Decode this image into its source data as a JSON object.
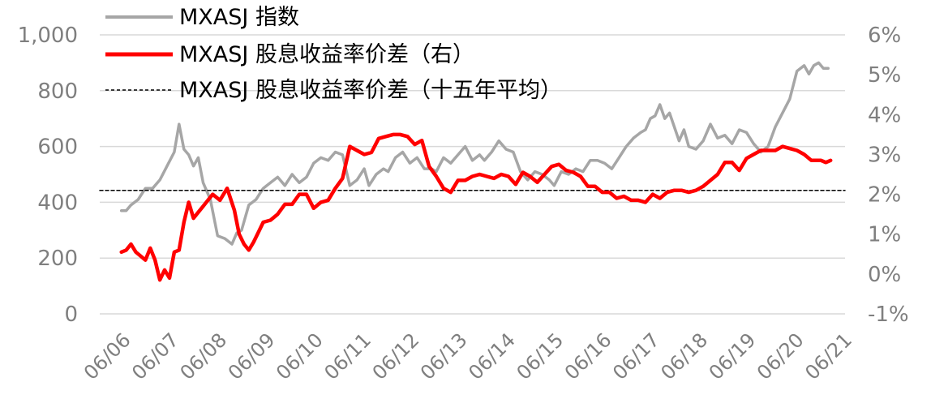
{
  "chart_data": {
    "type": "line",
    "title": "",
    "x_categories": [
      "06/06",
      "06/07",
      "06/08",
      "06/09",
      "06/10",
      "06/11",
      "06/12",
      "06/13",
      "06/14",
      "06/15",
      "06/16",
      "06/17",
      "06/18",
      "06/19",
      "06/20",
      "06/21"
    ],
    "left_axis": {
      "ylim": [
        0,
        1000
      ],
      "ticks": [
        0,
        200,
        400,
        600,
        800,
        1000
      ],
      "tick_labels": [
        "0",
        "200",
        "400",
        "600",
        "800",
        "1,000"
      ]
    },
    "right_axis": {
      "ylim": [
        -1,
        6
      ],
      "ticks": [
        -1,
        0,
        1,
        2,
        3,
        4,
        5,
        6
      ],
      "tick_labels": [
        "-1%",
        "0%",
        "1%",
        "2%",
        "3%",
        "4%",
        "5%",
        "6%"
      ]
    },
    "grid": "horizontal",
    "legend_position": "top-left",
    "series": [
      {
        "name": "MXASJ 指数",
        "axis": "left",
        "color": "#a6a6a6",
        "style": "solid",
        "x": [
          2006.45,
          2006.55,
          2006.65,
          2006.8,
          2006.95,
          2007.1,
          2007.25,
          2007.4,
          2007.55,
          2007.65,
          2007.75,
          2007.85,
          2007.95,
          2008.05,
          2008.15,
          2008.3,
          2008.45,
          2008.6,
          2008.75,
          2008.85,
          2008.95,
          2009.1,
          2009.25,
          2009.4,
          2009.55,
          2009.7,
          2009.85,
          2010.0,
          2010.15,
          2010.3,
          2010.45,
          2010.6,
          2010.75,
          2010.9,
          2011.05,
          2011.2,
          2011.35,
          2011.5,
          2011.6,
          2011.75,
          2011.9,
          2012.0,
          2012.15,
          2012.3,
          2012.45,
          2012.6,
          2012.75,
          2012.9,
          2013.0,
          2013.15,
          2013.3,
          2013.45,
          2013.6,
          2013.75,
          2013.9,
          2014.0,
          2014.15,
          2014.3,
          2014.45,
          2014.6,
          2014.75,
          2014.9,
          2015.05,
          2015.2,
          2015.35,
          2015.45,
          2015.6,
          2015.75,
          2015.9,
          2016.05,
          2016.2,
          2016.35,
          2016.5,
          2016.65,
          2016.8,
          2016.95,
          2017.1,
          2017.25,
          2017.35,
          2017.45,
          2017.55,
          2017.65,
          2017.75,
          2017.85,
          2017.95,
          2018.05,
          2018.15,
          2018.25,
          2018.4,
          2018.55,
          2018.7,
          2018.85,
          2019.0,
          2019.15,
          2019.3,
          2019.45,
          2019.6,
          2019.75,
          2019.9,
          2020.05,
          2020.2,
          2020.35,
          2020.5,
          2020.65,
          2020.75,
          2020.85,
          2020.95,
          2021.05,
          2021.15
        ],
        "values": [
          370,
          370,
          390,
          410,
          450,
          450,
          480,
          530,
          580,
          680,
          590,
          570,
          530,
          560,
          470,
          410,
          280,
          270,
          250,
          290,
          300,
          390,
          410,
          450,
          470,
          490,
          460,
          500,
          470,
          490,
          540,
          560,
          550,
          580,
          570,
          460,
          480,
          520,
          460,
          500,
          520,
          510,
          560,
          580,
          540,
          560,
          520,
          520,
          510,
          560,
          540,
          570,
          600,
          550,
          570,
          550,
          580,
          620,
          590,
          580,
          510,
          480,
          510,
          500,
          480,
          460,
          510,
          500,
          520,
          510,
          550,
          550,
          540,
          520,
          560,
          600,
          630,
          650,
          660,
          700,
          710,
          750,
          700,
          720,
          670,
          620,
          660,
          600,
          590,
          620,
          680,
          630,
          640,
          610,
          660,
          650,
          610,
          580,
          600,
          670,
          720,
          770,
          870,
          890,
          860,
          890,
          900,
          880,
          880
        ],
        "legend_label": "MXASJ 指数"
      },
      {
        "name": "MXASJ 股息收益率价差（右）",
        "axis": "right",
        "color": "#ff0000",
        "style": "solid",
        "x": [
          2006.45,
          2006.55,
          2006.65,
          2006.75,
          2006.85,
          2006.95,
          2007.05,
          2007.15,
          2007.25,
          2007.35,
          2007.45,
          2007.55,
          2007.65,
          2007.75,
          2007.85,
          2007.95,
          2008.05,
          2008.15,
          2008.25,
          2008.35,
          2008.5,
          2008.65,
          2008.8,
          2008.9,
          2009.0,
          2009.1,
          2009.2,
          2009.3,
          2009.4,
          2009.55,
          2009.7,
          2009.85,
          2010.0,
          2010.15,
          2010.3,
          2010.45,
          2010.6,
          2010.75,
          2010.9,
          2011.05,
          2011.2,
          2011.35,
          2011.5,
          2011.65,
          2011.8,
          2011.95,
          2012.1,
          2012.25,
          2012.4,
          2012.55,
          2012.7,
          2012.85,
          2013.0,
          2013.15,
          2013.3,
          2013.45,
          2013.6,
          2013.75,
          2013.9,
          2014.05,
          2014.2,
          2014.35,
          2014.5,
          2014.65,
          2014.8,
          2014.95,
          2015.1,
          2015.25,
          2015.4,
          2015.55,
          2015.7,
          2015.85,
          2016.0,
          2016.15,
          2016.3,
          2016.45,
          2016.6,
          2016.75,
          2016.9,
          2017.05,
          2017.2,
          2017.35,
          2017.5,
          2017.65,
          2017.8,
          2017.95,
          2018.1,
          2018.25,
          2018.4,
          2018.55,
          2018.7,
          2018.85,
          2019.0,
          2019.15,
          2019.3,
          2019.45,
          2019.6,
          2019.75,
          2019.9,
          2020.05,
          2020.2,
          2020.35,
          2020.5,
          2020.65,
          2020.8,
          2020.9,
          2021.0,
          2021.1,
          2021.2
        ],
        "values": [
          0.55,
          0.6,
          0.75,
          0.55,
          0.45,
          0.35,
          0.65,
          0.35,
          -0.15,
          0.1,
          -0.1,
          0.55,
          0.6,
          1.3,
          1.8,
          1.4,
          1.55,
          1.7,
          1.85,
          2.0,
          1.85,
          2.15,
          1.6,
          1.0,
          0.75,
          0.6,
          0.8,
          1.05,
          1.3,
          1.35,
          1.5,
          1.75,
          1.75,
          2.0,
          2.0,
          1.65,
          1.8,
          1.85,
          2.15,
          2.4,
          3.2,
          3.1,
          3.0,
          3.05,
          3.4,
          3.45,
          3.5,
          3.5,
          3.45,
          3.25,
          3.35,
          2.7,
          2.45,
          2.15,
          2.05,
          2.35,
          2.35,
          2.45,
          2.5,
          2.45,
          2.4,
          2.5,
          2.45,
          2.25,
          2.55,
          2.45,
          2.3,
          2.5,
          2.7,
          2.75,
          2.6,
          2.55,
          2.45,
          2.2,
          2.2,
          2.05,
          2.05,
          1.9,
          1.95,
          1.85,
          1.85,
          1.8,
          2.0,
          1.9,
          2.05,
          2.1,
          2.1,
          2.05,
          2.1,
          2.2,
          2.35,
          2.5,
          2.8,
          2.8,
          2.6,
          2.9,
          3.0,
          3.1,
          3.1,
          3.1,
          3.2,
          3.15,
          3.1,
          3.0,
          2.85,
          2.85,
          2.85,
          2.8,
          2.85
        ],
        "legend_label": "MXASJ 股息收益率价差（右）"
      },
      {
        "name": "MXASJ 股息收益率价差（十五年平均）",
        "axis": "right",
        "color": "#000000",
        "style": "dashed",
        "x": [
          2006.45,
          2021.2
        ],
        "values": [
          2.1,
          2.1
        ],
        "legend_label": "MXASJ 股息收益率价差（十五年平均）"
      }
    ]
  }
}
